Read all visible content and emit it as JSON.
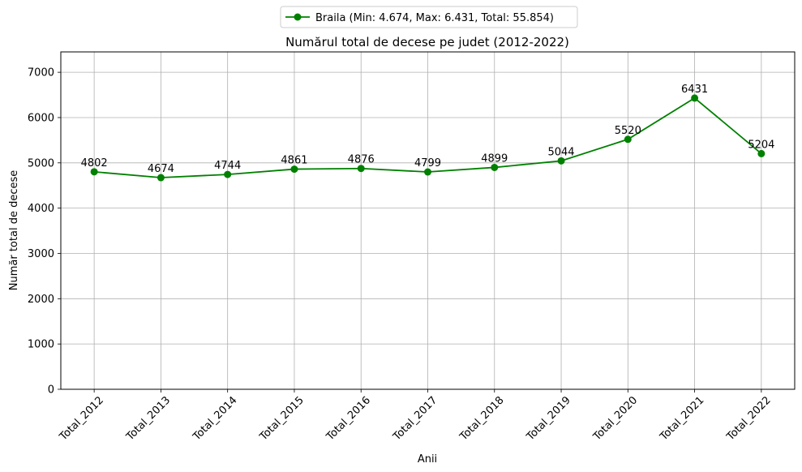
{
  "chart_data": {
    "type": "line",
    "title": "Numărul total de decese pe judet (2012-2022)",
    "xlabel": "Anii",
    "ylabel": "Număr total de decese",
    "categories": [
      "Total_2012",
      "Total_2013",
      "Total_2014",
      "Total_2015",
      "Total_2016",
      "Total_2017",
      "Total_2018",
      "Total_2019",
      "Total_2020",
      "Total_2021",
      "Total_2022"
    ],
    "series": [
      {
        "name": "Braila (Min: 4.674, Max: 6.431, Total: 55.854)",
        "values": [
          4802,
          4674,
          4744,
          4861,
          4876,
          4799,
          4899,
          5044,
          5520,
          6431,
          5204
        ],
        "color": "#008000"
      }
    ],
    "ylim": [
      0,
      7450
    ],
    "yticks": [
      0,
      1000,
      2000,
      3000,
      4000,
      5000,
      6000,
      7000
    ],
    "grid": true,
    "legend_position": "top-center",
    "data_labels": true
  }
}
